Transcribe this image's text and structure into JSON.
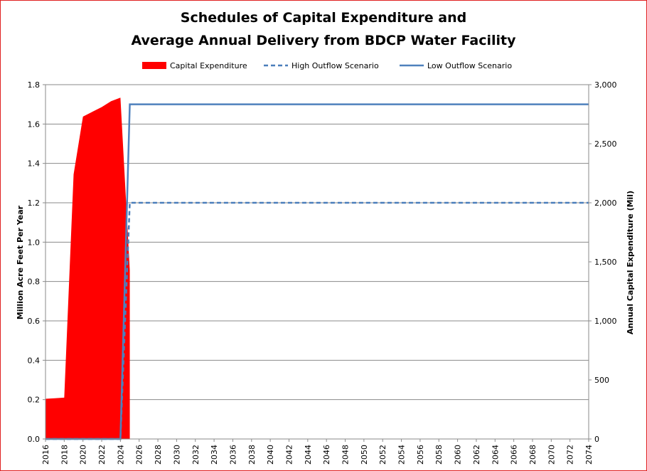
{
  "chart_data": {
    "type": "area+line",
    "title_lines": [
      "Schedules of Capital Expenditure and",
      "Average Annual Delivery from BDCP Water Facility"
    ],
    "ylabel_left": "Million Acre Feet Per Year",
    "ylabel_right": "Annual Capital Expenditure (Mil)",
    "ylim_left": [
      0,
      1.8
    ],
    "ylim_right": [
      0,
      3000
    ],
    "xlim": [
      2016,
      2074
    ],
    "left_ticks": [
      0.0,
      0.2,
      0.4,
      0.6,
      0.8,
      1.0,
      1.2,
      1.4,
      1.6,
      1.8
    ],
    "left_tick_labels": [
      "0.0",
      "0.2",
      "0.4",
      "0.6",
      "0.8",
      "1.0",
      "1.2",
      "1.4",
      "1.6",
      "1.8"
    ],
    "right_ticks": [
      0,
      500,
      1000,
      1500,
      2000,
      2500,
      3000
    ],
    "right_tick_labels": [
      "0",
      "500",
      "1,000",
      "1,500",
      "2,000",
      "2,500",
      "3,000"
    ],
    "x_ticks": [
      2016,
      2018,
      2020,
      2022,
      2024,
      2026,
      2028,
      2030,
      2032,
      2034,
      2036,
      2038,
      2040,
      2042,
      2044,
      2046,
      2048,
      2050,
      2052,
      2054,
      2056,
      2058,
      2060,
      2062,
      2064,
      2066,
      2068,
      2070,
      2072,
      2074
    ],
    "grid": "horizontal",
    "legend_position": "top",
    "series": [
      {
        "name": "Capital Expenditure",
        "kind": "area",
        "axis": "right",
        "color": "#ff0000",
        "x": [
          2016,
          2017,
          2018,
          2019,
          2020,
          2021,
          2022,
          2023,
          2024,
          2025
        ],
        "y": [
          340,
          345,
          350,
          2240,
          2730,
          2770,
          2810,
          2860,
          2890,
          1430
        ]
      },
      {
        "name": "High Outflow Scenario",
        "kind": "line",
        "dash": "dashed",
        "axis": "left",
        "color": "#4a7ebb",
        "x": [
          2016,
          2024,
          2025,
          2026,
          2030,
          2040,
          2050,
          2060,
          2070,
          2074
        ],
        "y": [
          0,
          0,
          1.2,
          1.2,
          1.2,
          1.2,
          1.2,
          1.2,
          1.2,
          1.2
        ]
      },
      {
        "name": "Low Outflow Scenario",
        "kind": "line",
        "dash": "solid",
        "axis": "left",
        "color": "#4f81bd",
        "x": [
          2016,
          2024,
          2025,
          2026,
          2030,
          2040,
          2050,
          2060,
          2070,
          2074
        ],
        "y": [
          0,
          0,
          1.7,
          1.7,
          1.7,
          1.7,
          1.7,
          1.7,
          1.7,
          1.7
        ]
      }
    ]
  }
}
